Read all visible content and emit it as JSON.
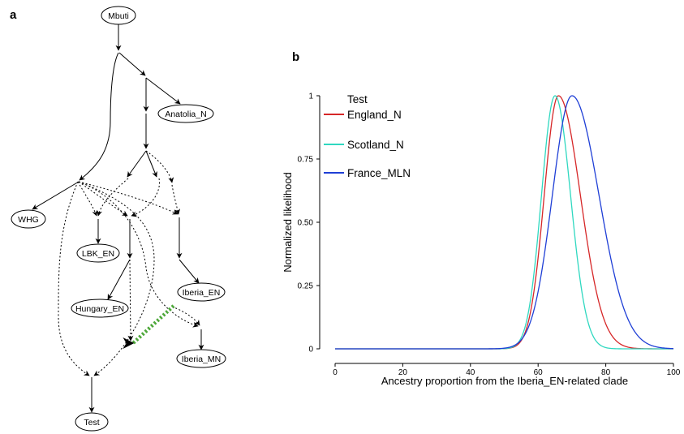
{
  "panel_a": {
    "label": "a",
    "nodes": [
      "Mbuti",
      "Anatolia_N",
      "WHG",
      "LBK_EN",
      "Iberia_EN",
      "Hungary_EN",
      "Iberia_MN",
      "Test"
    ]
  },
  "panel_b": {
    "label": "b"
  },
  "chart_data": {
    "type": "line",
    "title": "",
    "xlabel": "Ancestry proportion from the Iberia_EN-related clade",
    "ylabel": "Normalized likelihood",
    "xlim": [
      0,
      100
    ],
    "ylim": [
      0,
      1
    ],
    "x_ticks": [
      "0",
      "20",
      "40",
      "60",
      "80",
      "100"
    ],
    "y_ticks": [
      "0",
      "0.25",
      "0.50",
      "0.75",
      "1"
    ],
    "legend": {
      "title": "Test",
      "position": "top-left"
    },
    "series": [
      {
        "name": "England_N",
        "color": "#d62728",
        "peak": 66,
        "sd_left": 4.2,
        "sd_right": 6.5
      },
      {
        "name": "Scotland_N",
        "color": "#2fd8c0",
        "peak": 65,
        "sd_left": 4.0,
        "sd_right": 4.6
      },
      {
        "name": "France_MLN",
        "color": "#1f3fd6",
        "peak": 70,
        "sd_left": 5.8,
        "sd_right": 8.0
      }
    ]
  }
}
